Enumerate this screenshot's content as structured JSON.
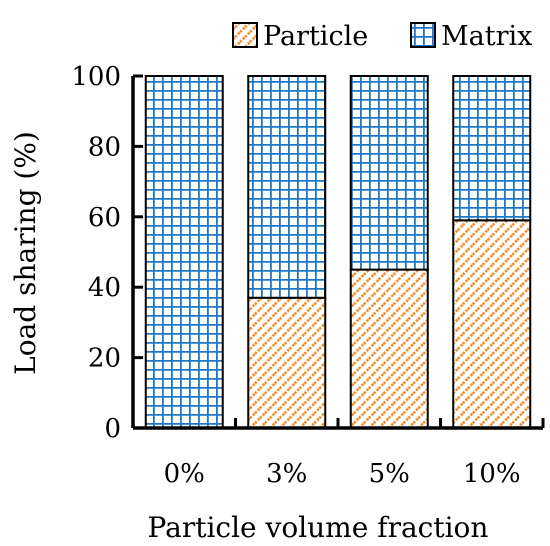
{
  "chart_data": {
    "type": "bar",
    "stacked": true,
    "categories": [
      "0%",
      "3%",
      "5%",
      "10%"
    ],
    "series": [
      {
        "name": "Particle",
        "values": [
          0,
          37,
          45,
          59
        ],
        "color": "#F08C28",
        "pattern": "diagonal-hatch"
      },
      {
        "name": "Matrix",
        "values": [
          100,
          63,
          55,
          41
        ],
        "color": "#1E78C8",
        "pattern": "grid"
      }
    ],
    "title": "",
    "xlabel": "Particle volume fraction",
    "ylabel": "Load sharing (%)",
    "ylim": [
      0,
      100
    ],
    "yticks": [
      0,
      20,
      40,
      60,
      80,
      100
    ],
    "grid": false,
    "legend_position": "top-right"
  }
}
